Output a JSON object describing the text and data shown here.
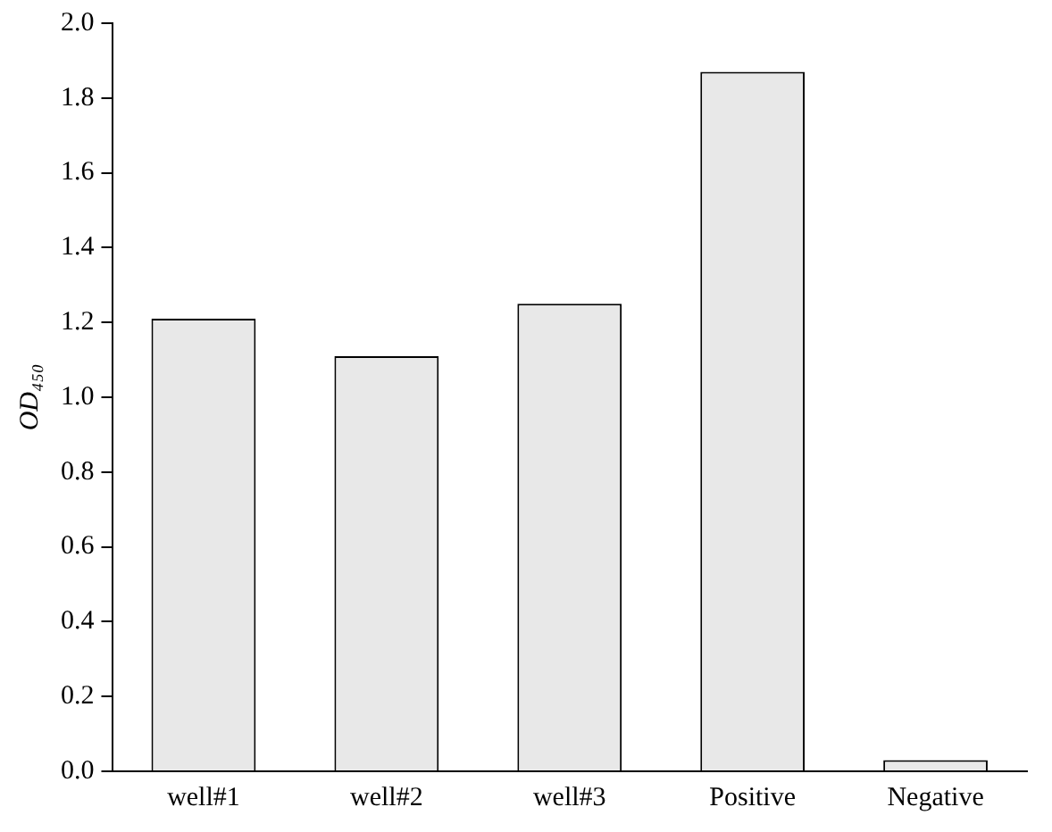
{
  "chart_data": {
    "type": "bar",
    "ylabel": "OD₄₅₀",
    "categories": [
      "well#1",
      "well#2",
      "well#3",
      "Positive",
      "Negative"
    ],
    "values": [
      1.21,
      1.11,
      1.25,
      1.87,
      0.03
    ],
    "color": "#e8e8e8",
    "ylim": [
      0,
      2
    ],
    "yticks": [
      {
        "value": 0,
        "label": "0.0"
      },
      {
        "value": 0.2,
        "label": "0.2"
      },
      {
        "value": 0.4,
        "label": "0.4"
      },
      {
        "value": 0.6,
        "label": "0.6"
      },
      {
        "value": 0.8,
        "label": "0.8"
      },
      {
        "value": 1,
        "label": "1.0"
      },
      {
        "value": 1.2,
        "label": "1.2"
      },
      {
        "value": 1.4,
        "label": "1.4"
      },
      {
        "value": 1.6,
        "label": "1.6"
      },
      {
        "value": 1.8,
        "label": "1.8"
      },
      {
        "value": 2,
        "label": "2.0"
      }
    ],
    "grid": false,
    "legend": false
  }
}
